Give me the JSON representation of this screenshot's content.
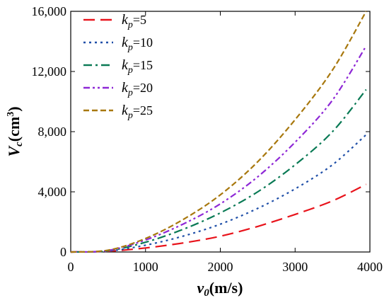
{
  "chart_data": {
    "type": "line",
    "xlabel": {
      "main": "v",
      "sub": "0",
      "units": "(m/s)"
    },
    "ylabel": {
      "main": "V",
      "sub": "c",
      "units": "(cm",
      "sup": "3",
      "close": ")"
    },
    "xlim": [
      0,
      4000
    ],
    "ylim": [
      0,
      16000
    ],
    "x_ticks": [
      0,
      1000,
      2000,
      3000,
      4000
    ],
    "y_ticks": [
      0,
      4000,
      8000,
      12000,
      16000
    ],
    "x_tick_labels": [
      "0",
      "1000",
      "2000",
      "3000",
      "4000"
    ],
    "y_tick_labels": [
      "0",
      "4,000",
      "8,000",
      "12,000",
      "16,000"
    ],
    "grid": false,
    "legend_position": "top-left",
    "x": [
      0,
      500,
      1000,
      1500,
      2000,
      2500,
      3000,
      3500,
      3950
    ],
    "series": [
      {
        "name": "k",
        "sub": "p",
        "suffix": "=5",
        "color": "#e8131b",
        "dash": "long-dash",
        "values": [
          0,
          50,
          270,
          600,
          1050,
          1700,
          2500,
          3400,
          4500
        ]
      },
      {
        "name": "k",
        "sub": "p",
        "suffix": "=10",
        "color": "#1f4fa8",
        "dash": "dot",
        "values": [
          0,
          60,
          450,
          1050,
          1850,
          2900,
          4200,
          5800,
          7800
        ]
      },
      {
        "name": "k",
        "sub": "p",
        "suffix": "=15",
        "color": "#0a7a55",
        "dash": "dash-dot",
        "values": [
          0,
          80,
          650,
          1500,
          2600,
          4000,
          5800,
          8000,
          10800
        ]
      },
      {
        "name": "k",
        "sub": "p",
        "suffix": "=20",
        "color": "#8e28d6",
        "dash": "dash-dot-dot",
        "values": [
          0,
          100,
          800,
          1850,
          3200,
          5000,
          7300,
          10100,
          13700
        ]
      },
      {
        "name": "k",
        "sub": "p",
        "suffix": "=25",
        "color": "#a8780e",
        "dash": "short-dash",
        "values": [
          0,
          120,
          900,
          2150,
          3800,
          6000,
          8800,
          12100,
          16000
        ]
      }
    ]
  }
}
